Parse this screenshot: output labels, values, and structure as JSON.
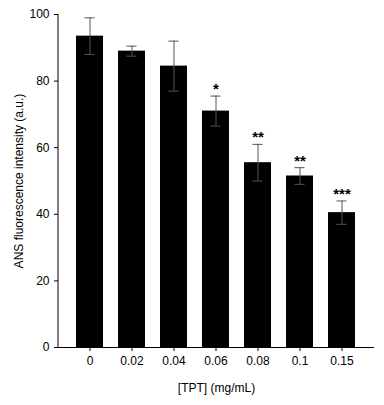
{
  "chart_data": {
    "type": "bar",
    "categories": [
      "0",
      "0.02",
      "0.04",
      "0.06",
      "0.08",
      "0.1",
      "0.15"
    ],
    "values": [
      93.5,
      89,
      84.5,
      71,
      55.5,
      51.5,
      40.5
    ],
    "errors": [
      5.5,
      1.5,
      7.5,
      4.5,
      5.5,
      2.5,
      3.5
    ],
    "annotations": [
      null,
      null,
      null,
      "*",
      "**",
      "**",
      "***"
    ],
    "color": "#000000",
    "x_label": "[TPT] (mg/mL)",
    "y_label": "ANS fluorescence intensity (a.u.)",
    "ylim": [
      0,
      100
    ],
    "yticks": [
      0,
      20,
      40,
      60,
      80,
      100
    ],
    "grid": false
  }
}
